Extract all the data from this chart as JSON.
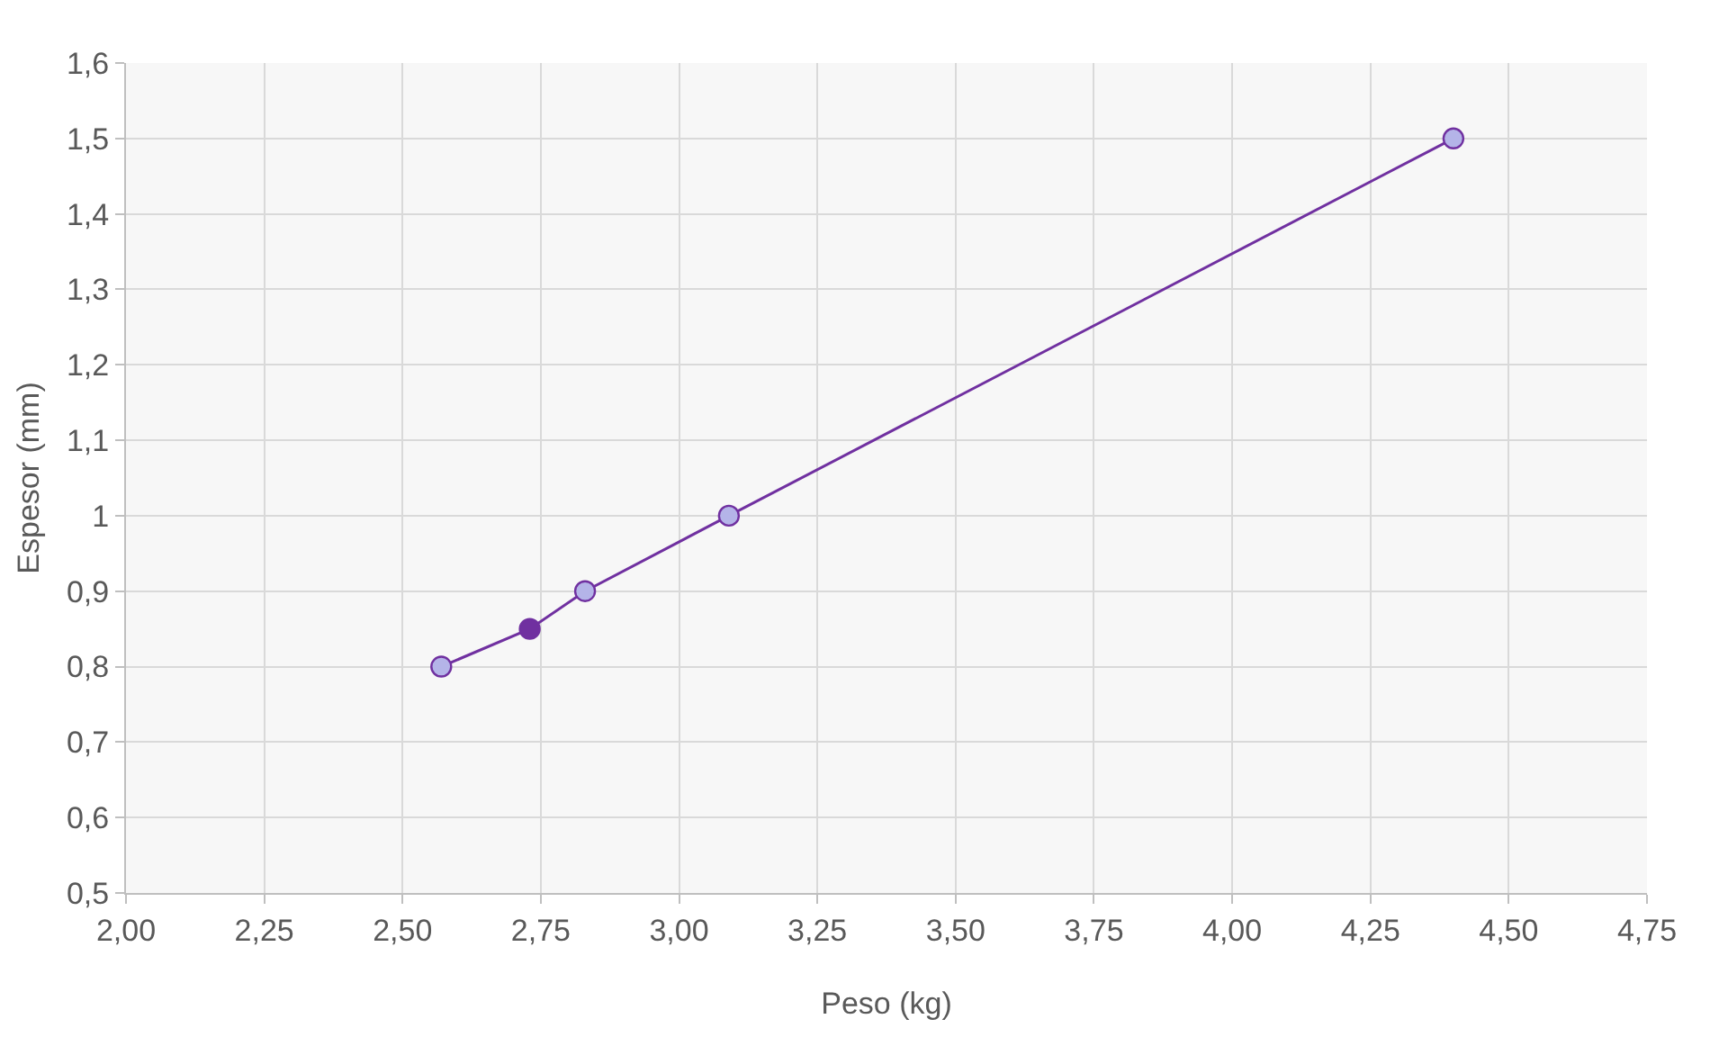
{
  "chart_data": {
    "type": "line",
    "xlabel": "Peso (kg)",
    "ylabel": "Espesor (mm)",
    "x": [
      2.57,
      2.73,
      2.83,
      3.09,
      4.4
    ],
    "series": [
      {
        "color": "#7030a0",
        "colors": [
          "#b4b4e8",
          "#7030a0",
          "#b4b4e8",
          "#b4b4e8",
          "#b4b4e8"
        ],
        "values": [
          0.8,
          0.85,
          0.9,
          1.0,
          1.5
        ]
      }
    ],
    "xlim": [
      2.0,
      4.75
    ],
    "xticks": [
      {
        "value": 2.0,
        "label": "2,00"
      },
      {
        "value": 2.25,
        "label": "2,25"
      },
      {
        "value": 2.5,
        "label": "2,50"
      },
      {
        "value": 2.75,
        "label": "2,75"
      },
      {
        "value": 3.0,
        "label": "3,00"
      },
      {
        "value": 3.25,
        "label": "3,25"
      },
      {
        "value": 3.5,
        "label": "3,50"
      },
      {
        "value": 3.75,
        "label": "3,75"
      },
      {
        "value": 4.0,
        "label": "4,00"
      },
      {
        "value": 4.25,
        "label": "4,25"
      },
      {
        "value": 4.5,
        "label": "4,50"
      },
      {
        "value": 4.75,
        "label": "4,75"
      }
    ],
    "ylim": [
      0.5,
      1.6
    ],
    "yticks": [
      {
        "value": 0.5,
        "label": "0,5"
      },
      {
        "value": 0.6,
        "label": "0,6"
      },
      {
        "value": 0.7,
        "label": "0,7"
      },
      {
        "value": 0.8,
        "label": "0,8"
      },
      {
        "value": 0.9,
        "label": "0,9"
      },
      1,
      {
        "value": 1.1,
        "label": "1,1"
      },
      {
        "value": 1.2,
        "label": "1,2"
      },
      {
        "value": 1.3,
        "label": "1,3"
      },
      {
        "value": 1.4,
        "label": "1,4"
      },
      {
        "value": 1.5,
        "label": "1,5"
      },
      {
        "value": 1.6,
        "label": "1,6"
      }
    ],
    "grid": true,
    "marker": "circle",
    "line_style": "solid"
  }
}
